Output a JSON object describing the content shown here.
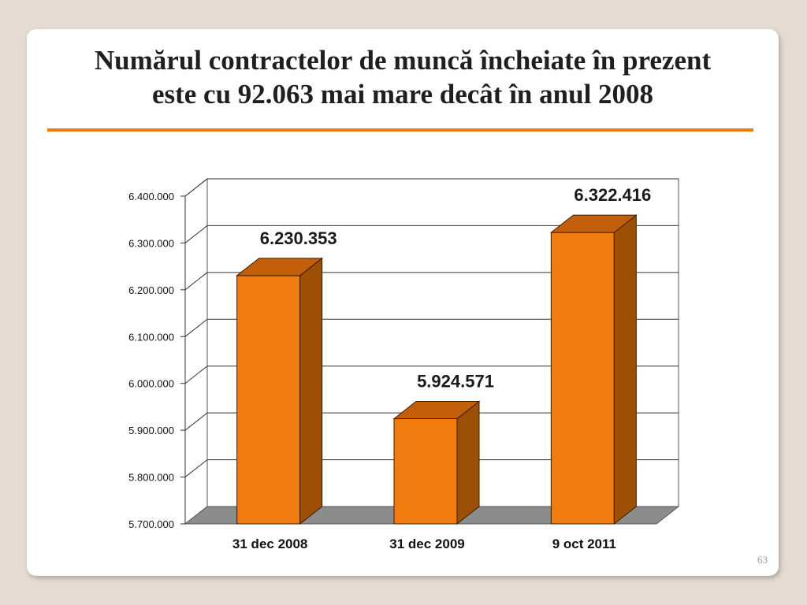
{
  "slide": {
    "title_line1": "Numărul contractelor de muncă încheiate în prezent",
    "title_line2_prefix": "este cu ",
    "title_line2_highlight": "92.063",
    "title_line2_suffix": " mai mare decât în anul 2008",
    "page_number": "63"
  },
  "colors": {
    "accent": "#f07c0f",
    "bar_front": "#f07c0f",
    "bar_side": "#9c4f05",
    "bar_top": "#c35f0a",
    "floor": "#8c8c8c",
    "background": "#e4dcd2"
  },
  "chart_data": {
    "type": "bar",
    "categories": [
      "31 dec 2008",
      "31 dec 2009",
      "9 oct 2011"
    ],
    "values": [
      6230353,
      5924571,
      6322416
    ],
    "value_labels": [
      "6.230.353",
      "5.924.571",
      "6.322.416"
    ],
    "ylim": [
      5700000,
      6400000
    ],
    "yticks": [
      5700000,
      5800000,
      5900000,
      6000000,
      6100000,
      6200000,
      6300000,
      6400000
    ],
    "ytick_labels": [
      "5.700.000",
      "5.800.000",
      "5.900.000",
      "6.000.000",
      "6.100.000",
      "6.200.000",
      "6.300.000",
      "6.400.000"
    ],
    "grid": true,
    "style": "3d-column",
    "legend": "none"
  }
}
